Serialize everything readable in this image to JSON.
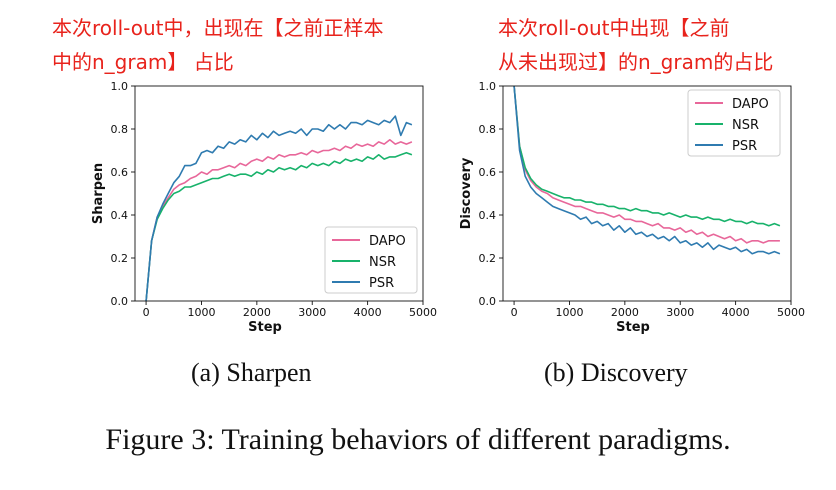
{
  "annotations": {
    "a_line1": "本次roll-out中，出现在【之前正样本",
    "a_line2": "中的n_gram】 占比",
    "b_line1": "本次roll-out中出现【之前",
    "b_line2": "从未出现过】的n_gram的占比"
  },
  "captions": {
    "a": "(a) Sharpen",
    "b": "(b) Discovery",
    "figure": "Figure 3: Training behaviors of different paradigms."
  },
  "colors": {
    "DAPO": "#e8679a",
    "NSR": "#18b26b",
    "PSR": "#2f7bb0",
    "annotation": "#e8231c"
  },
  "chart_data": [
    {
      "type": "line",
      "xlabel": "Step",
      "ylabel": "Sharpen",
      "xlim": [
        -200,
        5000
      ],
      "ylim": [
        0,
        1.0
      ],
      "xticks": [
        0,
        1000,
        2000,
        3000,
        4000,
        5000
      ],
      "xtick_labels": [
        "0",
        "1000",
        "2000",
        "3000",
        "4000",
        "5000"
      ],
      "yticks": [
        0.0,
        0.2,
        0.4,
        0.6,
        0.8,
        1.0
      ],
      "ytick_labels": [
        "0.0",
        "0.2",
        "0.4",
        "0.6",
        "0.8",
        "1.0"
      ],
      "legend": "bottom-right",
      "grid": false,
      "series": [
        {
          "name": "DAPO",
          "x": [
            0,
            100,
            200,
            300,
            400,
            500,
            600,
            700,
            800,
            900,
            1000,
            1100,
            1200,
            1300,
            1400,
            1500,
            1600,
            1700,
            1800,
            1900,
            2000,
            2100,
            2200,
            2300,
            2400,
            2500,
            2600,
            2700,
            2800,
            2900,
            3000,
            3100,
            3200,
            3300,
            3400,
            3500,
            3600,
            3700,
            3800,
            3900,
            4000,
            4100,
            4200,
            4300,
            4400,
            4500,
            4600,
            4700,
            4800
          ],
          "y": [
            0.0,
            0.28,
            0.39,
            0.44,
            0.48,
            0.52,
            0.54,
            0.55,
            0.57,
            0.58,
            0.6,
            0.59,
            0.61,
            0.61,
            0.62,
            0.63,
            0.62,
            0.64,
            0.63,
            0.65,
            0.66,
            0.65,
            0.67,
            0.66,
            0.68,
            0.67,
            0.68,
            0.68,
            0.69,
            0.68,
            0.7,
            0.69,
            0.7,
            0.7,
            0.71,
            0.7,
            0.72,
            0.71,
            0.73,
            0.72,
            0.73,
            0.72,
            0.74,
            0.73,
            0.75,
            0.73,
            0.74,
            0.73,
            0.74
          ]
        },
        {
          "name": "NSR",
          "x": [
            0,
            100,
            200,
            300,
            400,
            500,
            600,
            700,
            800,
            900,
            1000,
            1100,
            1200,
            1300,
            1400,
            1500,
            1600,
            1700,
            1800,
            1900,
            2000,
            2100,
            2200,
            2300,
            2400,
            2500,
            2600,
            2700,
            2800,
            2900,
            3000,
            3100,
            3200,
            3300,
            3400,
            3500,
            3600,
            3700,
            3800,
            3900,
            4000,
            4100,
            4200,
            4300,
            4400,
            4500,
            4600,
            4700,
            4800
          ],
          "y": [
            0.0,
            0.28,
            0.38,
            0.43,
            0.47,
            0.5,
            0.51,
            0.53,
            0.53,
            0.54,
            0.55,
            0.56,
            0.57,
            0.57,
            0.58,
            0.59,
            0.58,
            0.59,
            0.59,
            0.58,
            0.6,
            0.59,
            0.61,
            0.6,
            0.62,
            0.61,
            0.62,
            0.61,
            0.63,
            0.62,
            0.64,
            0.63,
            0.64,
            0.63,
            0.65,
            0.64,
            0.66,
            0.65,
            0.66,
            0.65,
            0.67,
            0.66,
            0.68,
            0.66,
            0.67,
            0.67,
            0.68,
            0.69,
            0.68
          ]
        },
        {
          "name": "PSR",
          "x": [
            0,
            100,
            200,
            300,
            400,
            500,
            600,
            700,
            800,
            900,
            1000,
            1100,
            1200,
            1300,
            1400,
            1500,
            1600,
            1700,
            1800,
            1900,
            2000,
            2100,
            2200,
            2300,
            2400,
            2500,
            2600,
            2700,
            2800,
            2900,
            3000,
            3100,
            3200,
            3300,
            3400,
            3500,
            3600,
            3700,
            3800,
            3900,
            4000,
            4100,
            4200,
            4300,
            4400,
            4500,
            4600,
            4700,
            4800
          ],
          "y": [
            0.0,
            0.28,
            0.39,
            0.45,
            0.5,
            0.55,
            0.58,
            0.63,
            0.63,
            0.64,
            0.69,
            0.7,
            0.69,
            0.72,
            0.71,
            0.74,
            0.73,
            0.75,
            0.74,
            0.77,
            0.75,
            0.78,
            0.76,
            0.79,
            0.77,
            0.78,
            0.79,
            0.78,
            0.8,
            0.77,
            0.8,
            0.8,
            0.79,
            0.82,
            0.8,
            0.82,
            0.8,
            0.83,
            0.83,
            0.82,
            0.84,
            0.83,
            0.82,
            0.84,
            0.83,
            0.86,
            0.77,
            0.83,
            0.82
          ]
        }
      ]
    },
    {
      "type": "line",
      "xlabel": "Step",
      "ylabel": "Discovery",
      "xlim": [
        -200,
        5000
      ],
      "ylim": [
        0,
        1.0
      ],
      "xticks": [
        0,
        1000,
        2000,
        3000,
        4000,
        5000
      ],
      "xtick_labels": [
        "0",
        "1000",
        "2000",
        "3000",
        "4000",
        "5000"
      ],
      "yticks": [
        0.0,
        0.2,
        0.4,
        0.6,
        0.8,
        1.0
      ],
      "ytick_labels": [
        "0.0",
        "0.2",
        "0.4",
        "0.6",
        "0.8",
        "1.0"
      ],
      "legend": "top-right",
      "grid": false,
      "series": [
        {
          "name": "DAPO",
          "x": [
            0,
            100,
            200,
            300,
            400,
            500,
            600,
            700,
            800,
            900,
            1000,
            1100,
            1200,
            1300,
            1400,
            1500,
            1600,
            1700,
            1800,
            1900,
            2000,
            2100,
            2200,
            2300,
            2400,
            2500,
            2600,
            2700,
            2800,
            2900,
            3000,
            3100,
            3200,
            3300,
            3400,
            3500,
            3600,
            3700,
            3800,
            3900,
            4000,
            4100,
            4200,
            4300,
            4400,
            4500,
            4600,
            4700,
            4800
          ],
          "y": [
            1.0,
            0.72,
            0.61,
            0.56,
            0.53,
            0.51,
            0.5,
            0.48,
            0.47,
            0.46,
            0.45,
            0.44,
            0.44,
            0.43,
            0.42,
            0.41,
            0.41,
            0.4,
            0.39,
            0.4,
            0.38,
            0.38,
            0.37,
            0.37,
            0.36,
            0.35,
            0.36,
            0.34,
            0.34,
            0.33,
            0.34,
            0.32,
            0.33,
            0.31,
            0.32,
            0.3,
            0.31,
            0.3,
            0.29,
            0.3,
            0.28,
            0.29,
            0.27,
            0.28,
            0.28,
            0.27,
            0.28,
            0.28,
            0.28
          ]
        },
        {
          "name": "NSR",
          "x": [
            0,
            100,
            200,
            300,
            400,
            500,
            600,
            700,
            800,
            900,
            1000,
            1100,
            1200,
            1300,
            1400,
            1500,
            1600,
            1700,
            1800,
            1900,
            2000,
            2100,
            2200,
            2300,
            2400,
            2500,
            2600,
            2700,
            2800,
            2900,
            3000,
            3100,
            3200,
            3300,
            3400,
            3500,
            3600,
            3700,
            3800,
            3900,
            4000,
            4100,
            4200,
            4300,
            4400,
            4500,
            4600,
            4700,
            4800
          ],
          "y": [
            1.0,
            0.72,
            0.62,
            0.57,
            0.54,
            0.52,
            0.51,
            0.5,
            0.49,
            0.48,
            0.48,
            0.47,
            0.47,
            0.46,
            0.46,
            0.45,
            0.45,
            0.44,
            0.44,
            0.43,
            0.43,
            0.42,
            0.43,
            0.42,
            0.42,
            0.41,
            0.41,
            0.4,
            0.41,
            0.4,
            0.39,
            0.4,
            0.39,
            0.39,
            0.38,
            0.39,
            0.38,
            0.38,
            0.37,
            0.38,
            0.37,
            0.37,
            0.36,
            0.37,
            0.36,
            0.36,
            0.35,
            0.36,
            0.35
          ]
        },
        {
          "name": "PSR",
          "x": [
            0,
            100,
            200,
            300,
            400,
            500,
            600,
            700,
            800,
            900,
            1000,
            1100,
            1200,
            1300,
            1400,
            1500,
            1600,
            1700,
            1800,
            1900,
            2000,
            2100,
            2200,
            2300,
            2400,
            2500,
            2600,
            2700,
            2800,
            2900,
            3000,
            3100,
            3200,
            3300,
            3400,
            3500,
            3600,
            3700,
            3800,
            3900,
            4000,
            4100,
            4200,
            4300,
            4400,
            4500,
            4600,
            4700,
            4800
          ],
          "y": [
            1.0,
            0.7,
            0.58,
            0.53,
            0.5,
            0.48,
            0.46,
            0.44,
            0.43,
            0.42,
            0.41,
            0.4,
            0.38,
            0.39,
            0.36,
            0.37,
            0.35,
            0.36,
            0.33,
            0.35,
            0.32,
            0.34,
            0.31,
            0.32,
            0.3,
            0.31,
            0.29,
            0.3,
            0.28,
            0.3,
            0.27,
            0.28,
            0.26,
            0.27,
            0.25,
            0.27,
            0.24,
            0.26,
            0.25,
            0.24,
            0.25,
            0.23,
            0.24,
            0.22,
            0.23,
            0.23,
            0.22,
            0.23,
            0.22
          ]
        }
      ]
    }
  ]
}
